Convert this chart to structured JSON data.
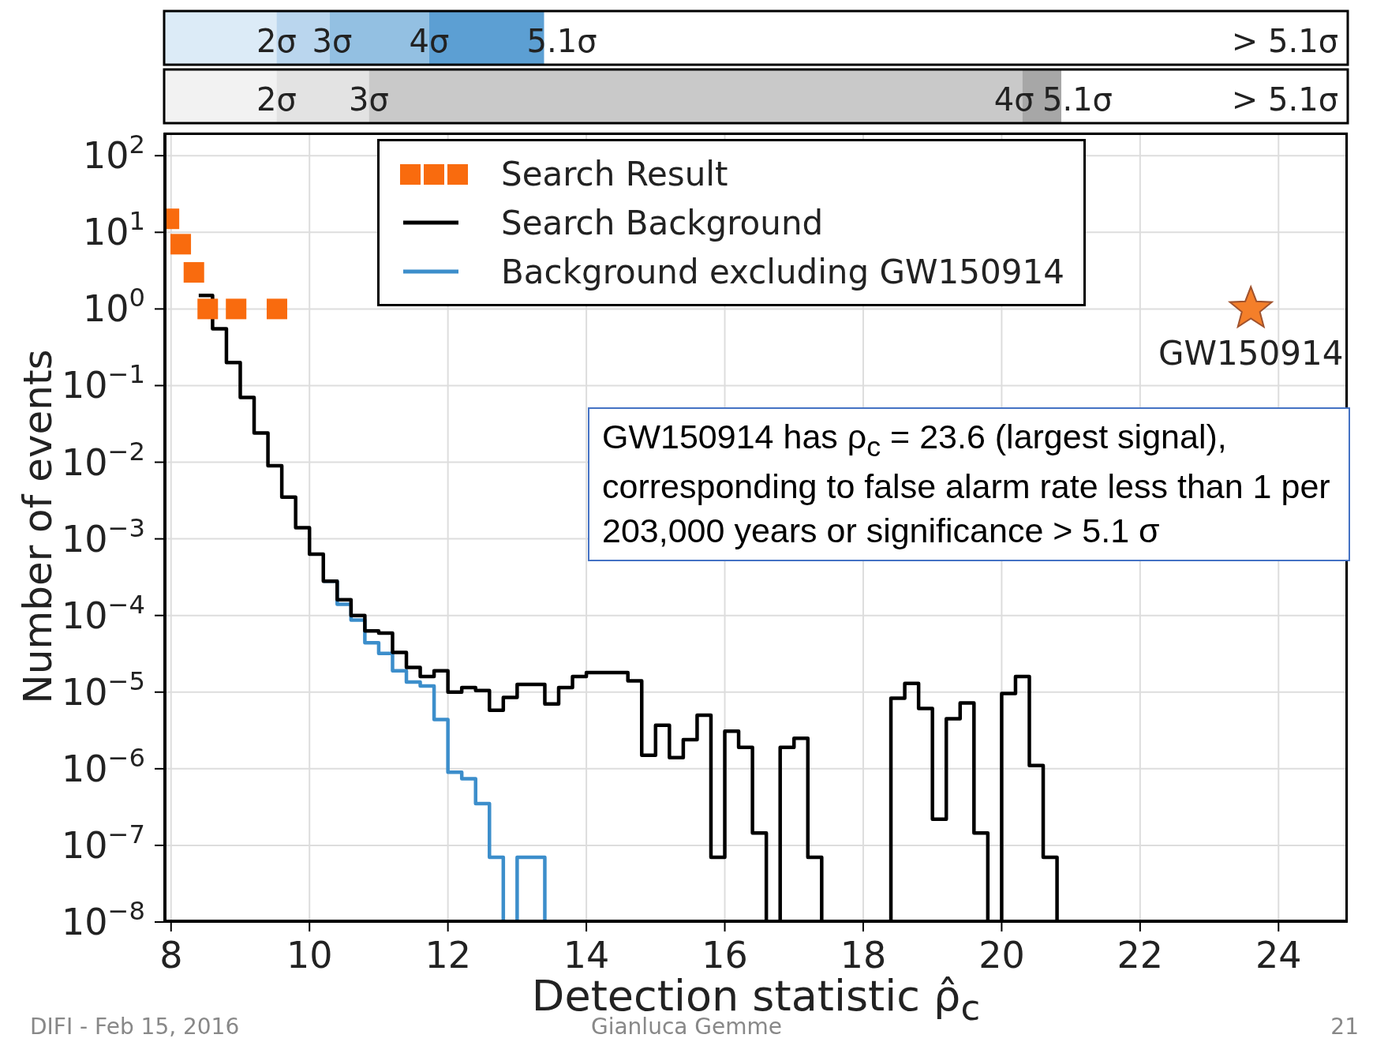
{
  "chart_data": {
    "type": "step",
    "xlabel": "Detection statistic ρ̂$_{c}$",
    "ylabel": "Number of events",
    "xlim": [
      7.9,
      25
    ],
    "xticks": [
      8,
      10,
      12,
      14,
      16,
      18,
      20,
      22,
      24
    ],
    "ylim": [
      1e-08,
      200
    ],
    "log": "y",
    "yticks": [
      {
        "value": 1e-08,
        "label": "10$^{−8}$"
      },
      {
        "value": 1e-07,
        "label": "10$^{−7}$"
      },
      {
        "value": 1e-06,
        "label": "10$^{−6}$"
      },
      {
        "value": 1e-05,
        "label": "10$^{−5}$"
      },
      {
        "value": 0.0001,
        "label": "10$^{−4}$"
      },
      {
        "value": 0.001,
        "label": "10$^{−3}$"
      },
      {
        "value": 0.01,
        "label": "10$^{−2}$"
      },
      {
        "value": 0.1,
        "label": "10$^{−1}$"
      },
      {
        "value": 1,
        "label": "10$^{0}$"
      },
      {
        "value": 10,
        "label": "10$^{1}$"
      },
      {
        "value": 100,
        "label": "10$^{2}$"
      }
    ],
    "grid": true,
    "legend": "top",
    "series": [
      {
        "name": "Search Result",
        "type": "scatter",
        "marker": "square",
        "color": "#f96b0e",
        "x": [
          7.97,
          8.14,
          8.33,
          8.53,
          8.94,
          9.53
        ],
        "values": [
          15,
          7,
          3,
          1,
          1,
          1
        ]
      },
      {
        "name": "Search Background",
        "marker": "none",
        "color": "#000000",
        "x": [
          8.4,
          8.6,
          8.8,
          9.0,
          9.2,
          9.4,
          9.6,
          9.8,
          10.0,
          10.2,
          10.4,
          10.6,
          10.8,
          11.0,
          11.2,
          11.4,
          11.6,
          11.8,
          12.0,
          12.2,
          12.4,
          12.6,
          12.8,
          13.0,
          13.2,
          13.4,
          13.6,
          13.8,
          14.0,
          14.2,
          14.4,
          14.6,
          14.8,
          15.0,
          15.2,
          15.4,
          15.6,
          15.8,
          16.0,
          16.2,
          16.4,
          16.6,
          16.8,
          17.0,
          17.2,
          17.4,
          17.6,
          17.8,
          18.0,
          18.2,
          18.4,
          18.6,
          18.8,
          19.0,
          19.2,
          19.4,
          19.6,
          19.8,
          20.0,
          20.2,
          20.4,
          20.6,
          20.8
        ],
        "values": [
          1.5,
          0.55,
          0.2,
          0.07,
          0.024,
          0.009,
          0.0035,
          0.0014,
          0.00063,
          0.00028,
          0.00016,
          0.0001,
          6.3e-05,
          5.9e-05,
          3.3e-05,
          2.1e-05,
          1.6e-05,
          1.9e-05,
          1e-05,
          1.15e-05,
          1.05e-05,
          5.8e-06,
          8.5e-06,
          1.26e-05,
          1.26e-05,
          7e-06,
          1.15e-05,
          1.6e-05,
          1.8e-05,
          1.8e-05,
          1.8e-05,
          1.4e-05,
          1.5e-06,
          3.7e-06,
          1.4e-06,
          2.4e-06,
          5e-06,
          7e-08,
          3.1e-06,
          1.9e-06,
          1.45e-07,
          1e-08,
          1.9e-06,
          2.5e-06,
          7e-08,
          1e-08,
          1e-08,
          1e-08,
          1e-08,
          1e-08,
          8.3e-06,
          1.3e-05,
          6.1e-06,
          2.2e-07,
          4.5e-06,
          7.2e-06,
          1.45e-07,
          1e-08,
          9.6e-06,
          1.6e-05,
          1.1e-06,
          7e-08,
          1e-08
        ]
      },
      {
        "name": "Background excluding GW150914",
        "marker": "none",
        "color": "#3c8ecb",
        "x": [
          10.2,
          10.4,
          10.6,
          10.8,
          11.0,
          11.2,
          11.4,
          11.6,
          11.8,
          12.0,
          12.2,
          12.4,
          12.6,
          12.8,
          13.0,
          13.2,
          13.4
        ],
        "values": [
          0.00028,
          0.00014,
          8.7e-05,
          4.4e-05,
          3.2e-05,
          1.9e-05,
          1.35e-05,
          1.2e-05,
          4.4e-06,
          9e-07,
          7.4e-07,
          3.5e-07,
          7e-08,
          1e-08,
          7e-08,
          7e-08,
          1e-08
        ]
      },
      {
        "type": "scatter",
        "marker": "star",
        "color": "#f47f2a",
        "x": [
          23.6
        ],
        "values": [
          1
        ]
      }
    ],
    "annotations": [
      "2σ",
      "3σ",
      "4σ",
      "5.1σ",
      "> 5.1σ",
      "2σ",
      "3σ",
      "4σ",
      "5.1σ",
      "> 5.1σ",
      {
        "text": "GW150914",
        "x": 23.6,
        "y": 1
      },
      "GW150914 has ρ$_{c}$ = 23.6 (largest signal), corresponding to false alarm rate less than 1 per 203,000 years or significance > 5.1 σ",
      "DIFI - Feb 15, 2016",
      "Gianluca Gemme",
      "21"
    ]
  }
}
